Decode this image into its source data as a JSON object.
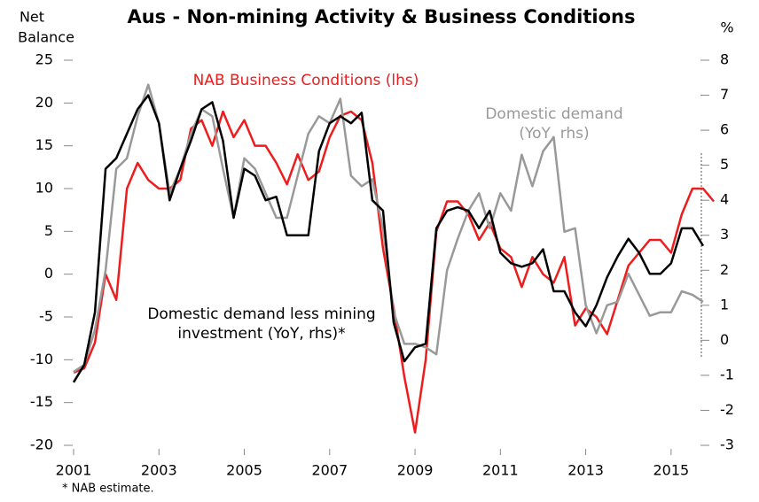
{
  "chart_data": {
    "type": "line",
    "title": "Aus - Non-mining Activity & Business Conditions",
    "ylabel": [
      "Net",
      "Balance"
    ],
    "y2label": "%",
    "footnote": "* NAB estimate.",
    "x": [
      2001,
      2001.25,
      2001.5,
      2001.75,
      2002,
      2002.25,
      2002.5,
      2002.75,
      2003,
      2003.25,
      2003.5,
      2003.75,
      2004,
      2004.25,
      2004.5,
      2004.75,
      2005,
      2005.25,
      2005.5,
      2005.75,
      2006,
      2006.25,
      2006.5,
      2006.75,
      2007,
      2007.25,
      2007.5,
      2007.75,
      2008,
      2008.25,
      2008.5,
      2008.75,
      2009,
      2009.25,
      2009.5,
      2009.75,
      2010,
      2010.25,
      2010.5,
      2010.75,
      2011,
      2011.25,
      2011.5,
      2011.75,
      2012,
      2012.25,
      2012.5,
      2012.75,
      2013,
      2013.25,
      2013.5,
      2013.75,
      2014,
      2014.25,
      2014.5,
      2014.75,
      2015,
      2015.25,
      2015.5,
      2015.75,
      2016
    ],
    "xlim": [
      2001,
      2016
    ],
    "xticks": [
      2001,
      2003,
      2005,
      2007,
      2009,
      2011,
      2013,
      2015
    ],
    "ylim": [
      -20,
      25
    ],
    "yticks": [
      -20,
      -15,
      -10,
      -5,
      0,
      5,
      10,
      15,
      20,
      25
    ],
    "y2lim": [
      -3,
      8
    ],
    "y2ticks": [
      -3,
      -2,
      -1,
      0,
      1,
      2,
      3,
      4,
      5,
      6,
      7,
      8
    ],
    "series": [
      {
        "name": "NAB Business Conditions (lhs)",
        "color": "#ee1c1c",
        "axis": "y",
        "values": [
          -11.5,
          -11,
          -8,
          0,
          -3,
          10,
          13,
          11,
          10,
          10,
          11,
          17,
          18,
          15,
          19,
          16,
          18,
          15,
          15,
          13,
          10.5,
          14,
          11,
          12,
          16,
          18.5,
          19,
          18,
          13,
          3,
          -4,
          -12,
          -18.5,
          -10,
          5,
          8.5,
          8.5,
          7,
          4,
          6,
          3,
          2,
          -1.5,
          2,
          0,
          -1,
          2,
          -6,
          -4,
          -5,
          -7,
          -3,
          1,
          2.5,
          4,
          4,
          2.5,
          7,
          10,
          10,
          8.5
        ]
      },
      {
        "name": "Domestic demand (YoY, rhs)",
        "color": "#999999",
        "axis": "y2",
        "values": [
          -0.9,
          -0.7,
          0.3,
          2,
          4.9,
          5.2,
          6.4,
          7.3,
          6.2,
          4.2,
          4.9,
          5.9,
          6.6,
          6.4,
          4.9,
          3.5,
          5.2,
          4.9,
          4.2,
          3.5,
          3.5,
          4.7,
          5.9,
          6.4,
          6.2,
          6.9,
          4.7,
          4.4,
          4.6,
          3.2,
          0.8,
          -0.1,
          -0.1,
          -0.2,
          -0.4,
          2,
          2.9,
          3.7,
          4.2,
          3.2,
          4.2,
          3.7,
          5.3,
          4.4,
          5.4,
          5.8,
          3.1,
          3.2,
          1.0,
          0.2,
          1.0,
          1.1,
          1.9,
          1.3,
          0.7,
          0.8,
          0.8,
          1.4,
          1.3,
          1.1,
          null
        ]
      },
      {
        "name": "Domestic demand less mining investment (YoY, rhs)*",
        "color": "#000000",
        "axis": "y2",
        "values": [
          -1.2,
          -0.7,
          0.8,
          4.9,
          5.2,
          5.9,
          6.6,
          7.0,
          6.2,
          4.0,
          4.9,
          5.7,
          6.6,
          6.8,
          5.7,
          3.5,
          4.9,
          4.7,
          4.0,
          4.1,
          3.0,
          3.0,
          3.0,
          5.4,
          6.2,
          6.4,
          6.2,
          6.5,
          4.0,
          3.7,
          0.5,
          -0.6,
          -0.2,
          -0.1,
          3.2,
          3.7,
          3.8,
          3.7,
          3.2,
          3.7,
          2.5,
          2.2,
          2.1,
          2.2,
          2.6,
          1.4,
          1.4,
          0.8,
          0.4,
          1.0,
          1.8,
          2.4,
          2.9,
          2.5,
          1.9,
          1.9,
          2.2,
          3.2,
          3.2,
          2.7,
          null
        ]
      }
    ]
  }
}
